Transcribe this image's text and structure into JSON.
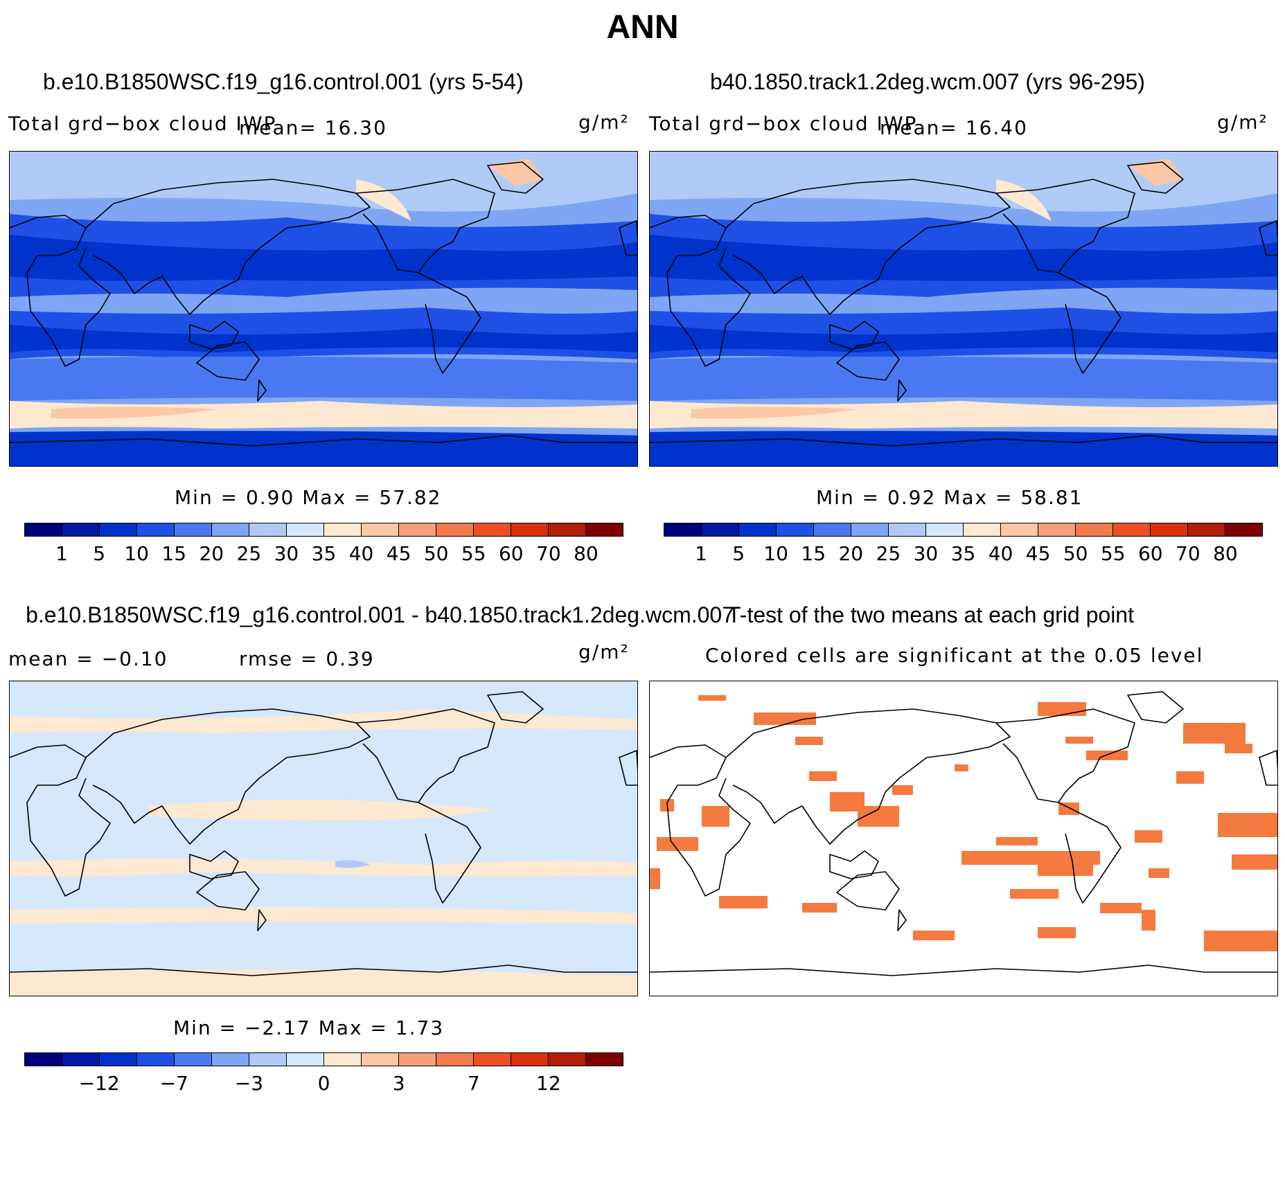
{
  "figure": {
    "season": "ANN"
  },
  "panels": {
    "case1": {
      "title": "b.e10.B1850WSC.f19_g16.control.001 (yrs 5-54)",
      "variable": "Total grd−box cloud IWP",
      "mean_text": "mean=   16.30",
      "units": "g/m²",
      "minmax_text": "Min =     0.90  Max =    57.82"
    },
    "case2": {
      "title": "b40.1850.track1.2deg.wcm.007 (yrs 96-295)",
      "variable": "Total grd−box cloud IWP",
      "mean_text": "mean=   16.40",
      "units": "g/m²",
      "minmax_text": "Min =     0.92  Max =    58.81"
    },
    "diff": {
      "title": "b.e10.B1850WSC.f19_g16.control.001 - b40.1850.track1.2deg.wcm.007",
      "mean_text": "mean =   −0.10",
      "rmse_text": "rmse =     0.39",
      "units": "g/m²",
      "minmax_text": "Min =   −2.17  Max =     1.73"
    },
    "ttest": {
      "title": "T-test of the two means at each grid point",
      "subtitle": "Colored cells are significant at the 0.05 level"
    }
  },
  "colorbars": {
    "abs": {
      "labels": [
        "1",
        "5",
        "10",
        "15",
        "20",
        "25",
        "30",
        "35",
        "40",
        "45",
        "50",
        "55",
        "60",
        "70",
        "80"
      ],
      "colors": [
        "#00007f",
        "#0019a6",
        "#0033cc",
        "#1f50e6",
        "#4a78f0",
        "#7fa6f5",
        "#b0cbf7",
        "#d6e8fb",
        "#fde8d2",
        "#fbc7a5",
        "#f7a07a",
        "#f27a4d",
        "#ec4f22",
        "#d9300e",
        "#b31e0a",
        "#7f0000"
      ]
    },
    "diff": {
      "labels": [
        "−12",
        "−7",
        "−3",
        "0",
        "3",
        "7",
        "12"
      ],
      "colors": [
        "#00007f",
        "#0019a6",
        "#0033cc",
        "#1f50e6",
        "#4a78f0",
        "#7fa6f5",
        "#b0cbf7",
        "#d6e8fb",
        "#fde8d2",
        "#fbc7a5",
        "#f7a07a",
        "#f27a4d",
        "#ec4f22",
        "#d9300e",
        "#b31e0a",
        "#7f0000"
      ]
    }
  }
}
